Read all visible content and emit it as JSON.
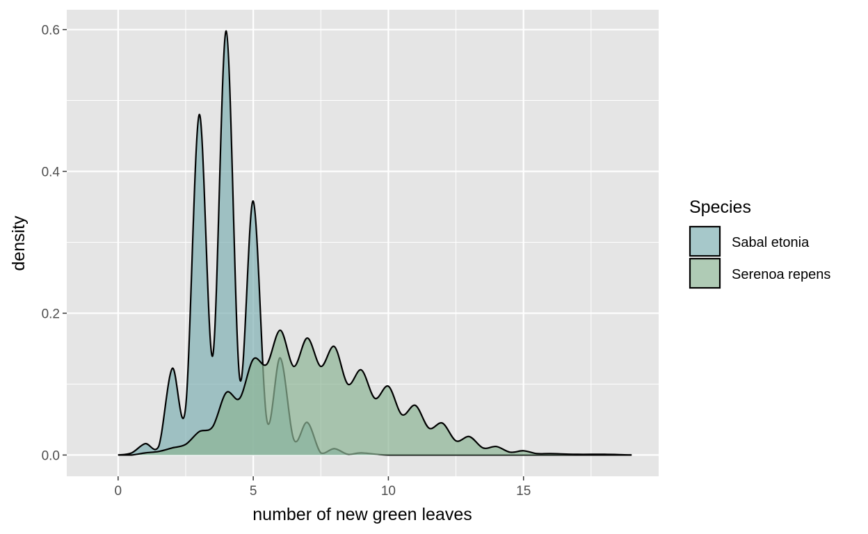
{
  "chart_data": {
    "type": "area",
    "subtype": "density",
    "xlabel": "number of new green leaves",
    "ylabel": "density",
    "xlim": [
      -1.9,
      20.0
    ],
    "ylim": [
      -0.03,
      0.628
    ],
    "x_ticks": [
      0,
      5,
      10,
      15
    ],
    "x_tick_labels": [
      "0",
      "5",
      "10",
      "15"
    ],
    "y_ticks": [
      0.0,
      0.2,
      0.4,
      0.6
    ],
    "y_tick_labels": [
      "0.0",
      "0.2",
      "0.4",
      "0.6"
    ],
    "grid": true,
    "panel_background": "#e5e5e5",
    "legend": {
      "title": "Species",
      "position": "right"
    },
    "series": [
      {
        "name": "Sabal etonia",
        "color": "#80b1b3",
        "x": [
          0,
          0.5,
          1,
          1.5,
          2,
          2.5,
          3,
          3.5,
          4,
          4.5,
          5,
          5.5,
          6,
          6.5,
          7,
          7.5,
          8,
          8.5,
          9,
          10,
          12,
          15,
          19
        ],
        "y": [
          0.0,
          0.003,
          0.016,
          0.012,
          0.122,
          0.068,
          0.48,
          0.14,
          0.598,
          0.108,
          0.358,
          0.05,
          0.137,
          0.022,
          0.046,
          0.003,
          0.009,
          0.001,
          0.003,
          0.0,
          0.0,
          0.0,
          0.0
        ]
      },
      {
        "name": "Serenoa repens",
        "color": "#8db596",
        "x": [
          0,
          0.5,
          1,
          1.5,
          2,
          2.5,
          3,
          3.5,
          4,
          4.5,
          5,
          5.5,
          6,
          6.5,
          7,
          7.5,
          8,
          8.5,
          9,
          9.5,
          10,
          10.5,
          11,
          11.5,
          12,
          12.5,
          13,
          13.5,
          14,
          14.5,
          15,
          15.5,
          16,
          17,
          18,
          19
        ],
        "y": [
          0.0,
          0.0,
          0.003,
          0.005,
          0.01,
          0.015,
          0.033,
          0.04,
          0.088,
          0.08,
          0.135,
          0.128,
          0.176,
          0.125,
          0.165,
          0.125,
          0.153,
          0.1,
          0.12,
          0.08,
          0.097,
          0.057,
          0.07,
          0.038,
          0.045,
          0.02,
          0.026,
          0.01,
          0.012,
          0.004,
          0.006,
          0.002,
          0.002,
          0.001,
          0.001,
          0.0
        ]
      }
    ]
  }
}
